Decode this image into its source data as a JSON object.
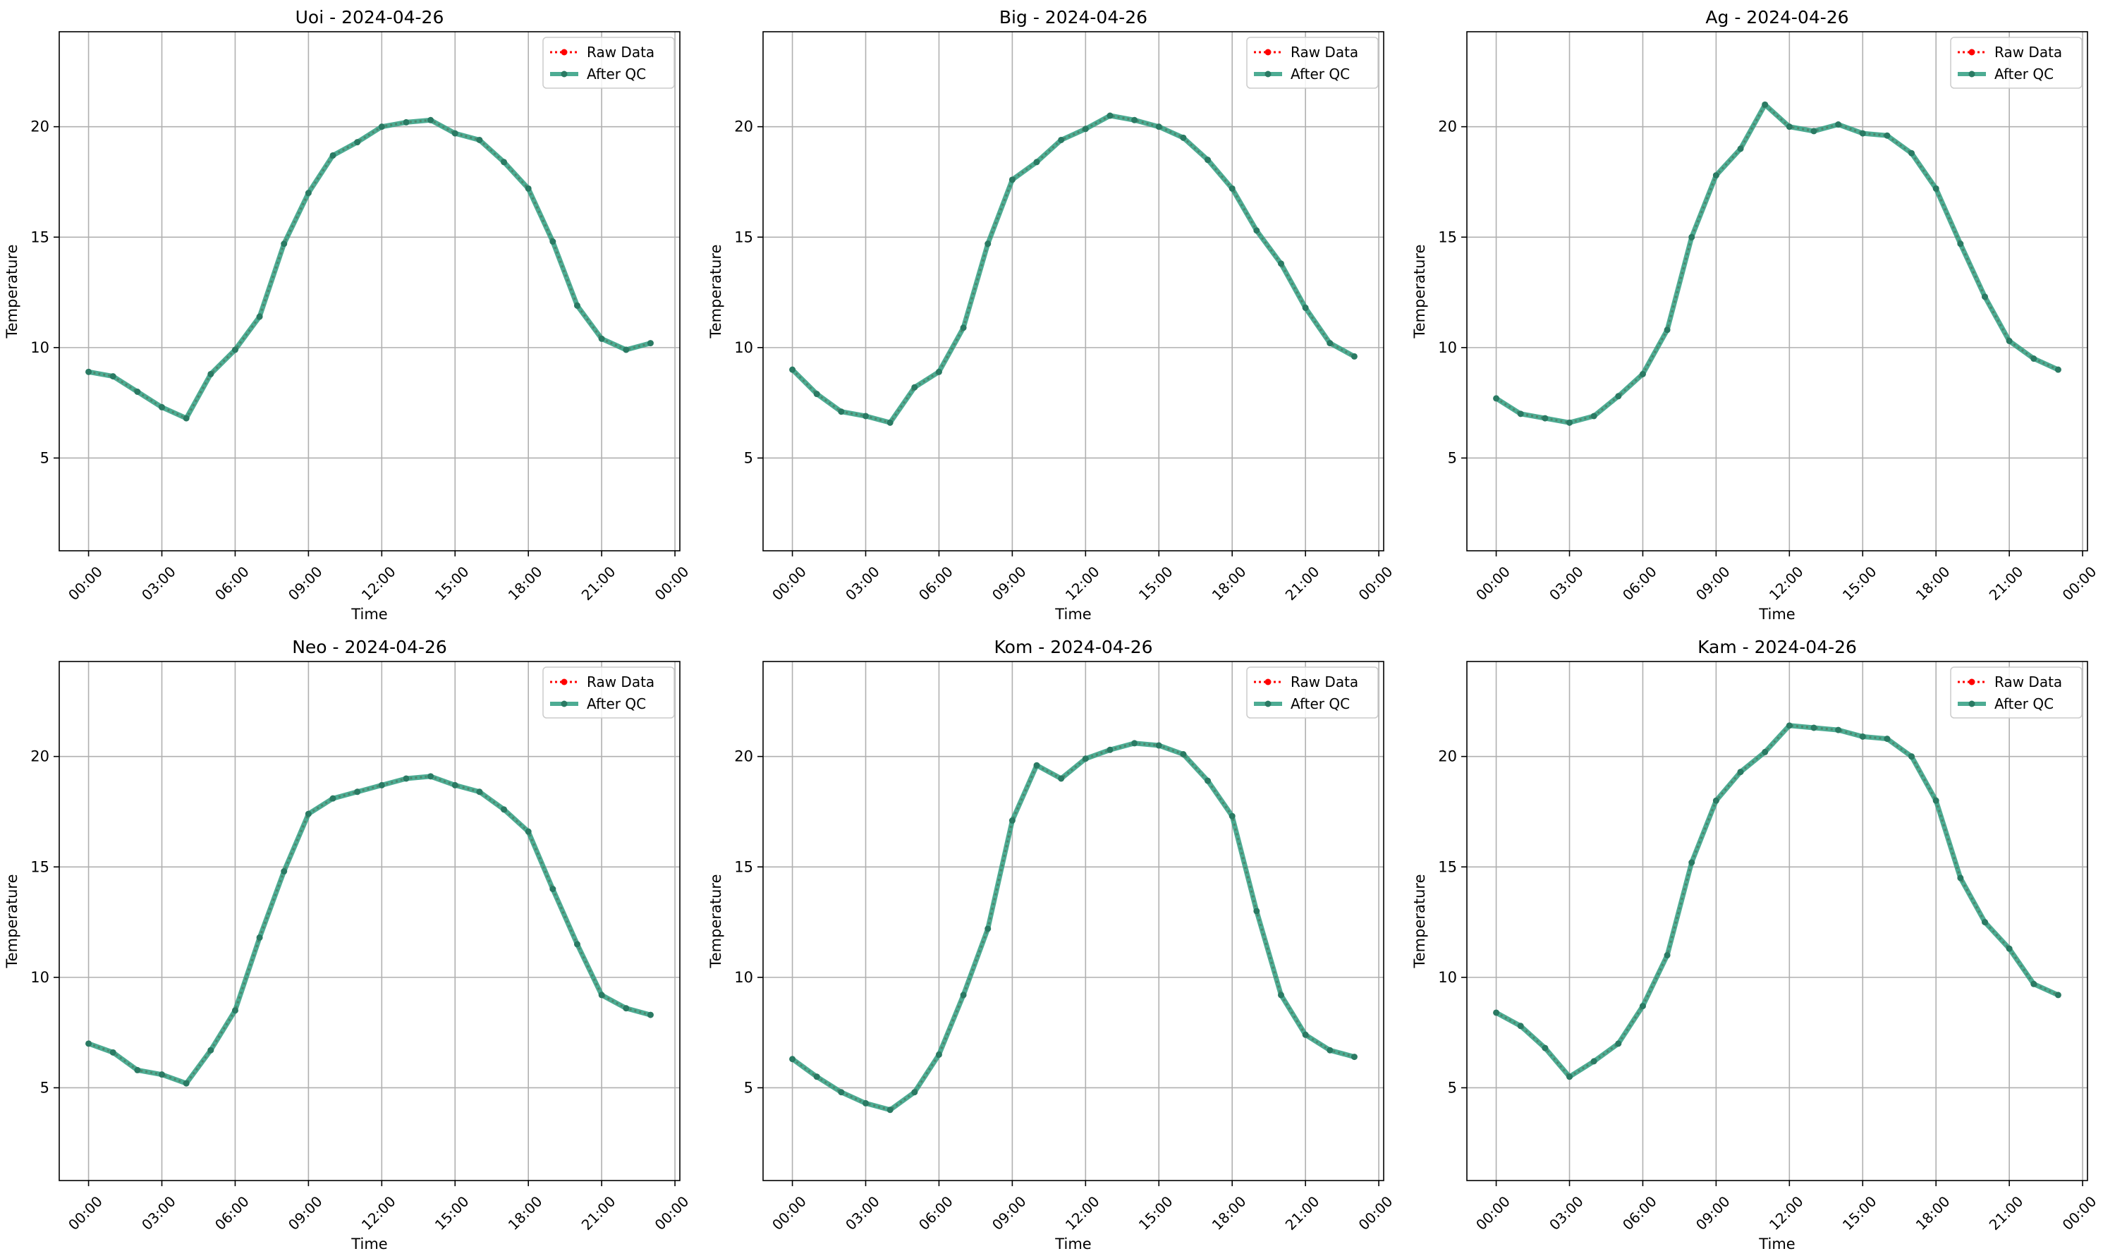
{
  "legend_entries": {
    "raw": "Raw Data",
    "qc": "After QC"
  },
  "colors": {
    "raw": "#ff0000",
    "qc": "#2e9e80",
    "grid": "#b0b0b0",
    "axes": "#000000"
  },
  "chart_data": [
    {
      "type": "line",
      "title": "Uoi - 2024-04-26",
      "xlabel": "Time",
      "ylabel": "Temperature",
      "x_unit": "hour",
      "x_ticks": [
        0,
        3,
        6,
        9,
        12,
        15,
        18,
        21,
        24
      ],
      "x_tick_labels": [
        "00:00",
        "03:00",
        "06:00",
        "09:00",
        "12:00",
        "15:00",
        "18:00",
        "21:00",
        "00:00"
      ],
      "y_ticks": [
        5,
        10,
        15,
        20
      ],
      "xlim": [
        -1.2,
        24.2
      ],
      "ylim": [
        0.8,
        24.3
      ],
      "grid": true,
      "legend": "upper right",
      "x": [
        0,
        1,
        2,
        3,
        4,
        5,
        6,
        7,
        8,
        9,
        10,
        11,
        12,
        13,
        14,
        15,
        16,
        17,
        18,
        19,
        20,
        21,
        22,
        23
      ],
      "series": [
        {
          "name": "Raw Data",
          "style": "dotted-marker",
          "values": [
            8.9,
            8.7,
            8.0,
            7.3,
            6.8,
            8.8,
            9.9,
            11.4,
            14.7,
            17.0,
            18.7,
            19.3,
            20.0,
            20.2,
            20.3,
            19.7,
            19.4,
            18.4,
            17.2,
            14.8,
            11.9,
            10.4,
            9.9,
            10.2
          ]
        },
        {
          "name": "After QC",
          "style": "solid-marker",
          "values": [
            8.9,
            8.7,
            8.0,
            7.3,
            6.8,
            8.8,
            9.9,
            11.4,
            14.7,
            17.0,
            18.7,
            19.3,
            20.0,
            20.2,
            20.3,
            19.7,
            19.4,
            18.4,
            17.2,
            14.8,
            11.9,
            10.4,
            9.9,
            10.2
          ]
        }
      ]
    },
    {
      "type": "line",
      "title": "Big - 2024-04-26",
      "xlabel": "Time",
      "ylabel": "Temperature",
      "x_unit": "hour",
      "x_ticks": [
        0,
        3,
        6,
        9,
        12,
        15,
        18,
        21,
        24
      ],
      "x_tick_labels": [
        "00:00",
        "03:00",
        "06:00",
        "09:00",
        "12:00",
        "15:00",
        "18:00",
        "21:00",
        "00:00"
      ],
      "y_ticks": [
        5,
        10,
        15,
        20
      ],
      "xlim": [
        -1.2,
        24.2
      ],
      "ylim": [
        0.8,
        24.3
      ],
      "grid": true,
      "legend": "upper right",
      "x": [
        0,
        1,
        2,
        3,
        4,
        5,
        6,
        7,
        8,
        9,
        10,
        11,
        12,
        13,
        14,
        15,
        16,
        17,
        18,
        19,
        20,
        21,
        22,
        23
      ],
      "series": [
        {
          "name": "Raw Data",
          "style": "dotted-marker",
          "values": [
            9.0,
            7.9,
            7.1,
            6.9,
            6.6,
            8.2,
            8.9,
            10.9,
            14.7,
            17.6,
            18.4,
            19.4,
            19.9,
            20.5,
            20.3,
            20.0,
            19.5,
            18.5,
            17.2,
            15.3,
            13.8,
            11.8,
            10.2,
            9.6
          ]
        },
        {
          "name": "After QC",
          "style": "solid-marker",
          "values": [
            9.0,
            7.9,
            7.1,
            6.9,
            6.6,
            8.2,
            8.9,
            10.9,
            14.7,
            17.6,
            18.4,
            19.4,
            19.9,
            20.5,
            20.3,
            20.0,
            19.5,
            18.5,
            17.2,
            15.3,
            13.8,
            11.8,
            10.2,
            9.6
          ]
        }
      ]
    },
    {
      "type": "line",
      "title": "Ag - 2024-04-26",
      "xlabel": "Time",
      "ylabel": "Temperature",
      "x_unit": "hour",
      "x_ticks": [
        0,
        3,
        6,
        9,
        12,
        15,
        18,
        21,
        24
      ],
      "x_tick_labels": [
        "00:00",
        "03:00",
        "06:00",
        "09:00",
        "12:00",
        "15:00",
        "18:00",
        "21:00",
        "00:00"
      ],
      "y_ticks": [
        5,
        10,
        15,
        20
      ],
      "xlim": [
        -1.2,
        24.2
      ],
      "ylim": [
        0.8,
        24.3
      ],
      "grid": true,
      "legend": "upper right",
      "x": [
        0,
        1,
        2,
        3,
        4,
        5,
        6,
        7,
        8,
        9,
        10,
        11,
        12,
        13,
        14,
        15,
        16,
        17,
        18,
        19,
        20,
        21,
        22,
        23
      ],
      "series": [
        {
          "name": "Raw Data",
          "style": "dotted-marker",
          "values": [
            7.7,
            7.0,
            6.8,
            6.6,
            6.9,
            7.8,
            8.8,
            10.8,
            15.0,
            17.8,
            19.0,
            21.0,
            20.0,
            19.8,
            20.1,
            19.7,
            19.6,
            18.8,
            17.2,
            14.7,
            12.3,
            10.3,
            9.5,
            9.0
          ]
        },
        {
          "name": "After QC",
          "style": "solid-marker",
          "values": [
            7.7,
            7.0,
            6.8,
            6.6,
            6.9,
            7.8,
            8.8,
            10.8,
            15.0,
            17.8,
            19.0,
            21.0,
            20.0,
            19.8,
            20.1,
            19.7,
            19.6,
            18.8,
            17.2,
            14.7,
            12.3,
            10.3,
            9.5,
            9.0
          ]
        }
      ]
    },
    {
      "type": "line",
      "title": "Neo - 2024-04-26",
      "xlabel": "Time",
      "ylabel": "Temperature",
      "x_unit": "hour",
      "x_ticks": [
        0,
        3,
        6,
        9,
        12,
        15,
        18,
        21,
        24
      ],
      "x_tick_labels": [
        "00:00",
        "03:00",
        "06:00",
        "09:00",
        "12:00",
        "15:00",
        "18:00",
        "21:00",
        "00:00"
      ],
      "y_ticks": [
        5,
        10,
        15,
        20
      ],
      "xlim": [
        -1.2,
        24.2
      ],
      "ylim": [
        0.8,
        24.3
      ],
      "grid": true,
      "legend": "upper right",
      "x": [
        0,
        1,
        2,
        3,
        4,
        5,
        6,
        7,
        8,
        9,
        10,
        11,
        12,
        13,
        14,
        15,
        16,
        17,
        18,
        19,
        20,
        21,
        22,
        23
      ],
      "series": [
        {
          "name": "Raw Data",
          "style": "dotted-marker",
          "values": [
            7.0,
            6.6,
            5.8,
            5.6,
            5.2,
            6.7,
            8.5,
            11.8,
            14.8,
            17.4,
            18.1,
            18.4,
            18.7,
            19.0,
            19.1,
            18.7,
            18.4,
            17.6,
            16.6,
            14.0,
            11.5,
            9.2,
            8.6,
            8.3
          ]
        },
        {
          "name": "After QC",
          "style": "solid-marker",
          "values": [
            7.0,
            6.6,
            5.8,
            5.6,
            5.2,
            6.7,
            8.5,
            11.8,
            14.8,
            17.4,
            18.1,
            18.4,
            18.7,
            19.0,
            19.1,
            18.7,
            18.4,
            17.6,
            16.6,
            14.0,
            11.5,
            9.2,
            8.6,
            8.3
          ]
        }
      ]
    },
    {
      "type": "line",
      "title": "Kom - 2024-04-26",
      "xlabel": "Time",
      "ylabel": "Temperature",
      "x_unit": "hour",
      "x_ticks": [
        0,
        3,
        6,
        9,
        12,
        15,
        18,
        21,
        24
      ],
      "x_tick_labels": [
        "00:00",
        "03:00",
        "06:00",
        "09:00",
        "12:00",
        "15:00",
        "18:00",
        "21:00",
        "00:00"
      ],
      "y_ticks": [
        5,
        10,
        15,
        20
      ],
      "xlim": [
        -1.2,
        24.2
      ],
      "ylim": [
        0.8,
        24.3
      ],
      "grid": true,
      "legend": "upper right",
      "x": [
        0,
        1,
        2,
        3,
        4,
        5,
        6,
        7,
        8,
        9,
        10,
        11,
        12,
        13,
        14,
        15,
        16,
        17,
        18,
        19,
        20,
        21,
        22,
        23
      ],
      "series": [
        {
          "name": "Raw Data",
          "style": "dotted-marker",
          "values": [
            6.3,
            5.5,
            4.8,
            4.3,
            4.0,
            4.8,
            6.5,
            9.2,
            12.2,
            17.1,
            19.6,
            19.0,
            19.9,
            20.3,
            20.6,
            20.5,
            20.1,
            18.9,
            17.3,
            13.0,
            9.2,
            7.4,
            6.7,
            6.4
          ]
        },
        {
          "name": "After QC",
          "style": "solid-marker",
          "values": [
            6.3,
            5.5,
            4.8,
            4.3,
            4.0,
            4.8,
            6.5,
            9.2,
            12.2,
            17.1,
            19.6,
            19.0,
            19.9,
            20.3,
            20.6,
            20.5,
            20.1,
            18.9,
            17.3,
            13.0,
            9.2,
            7.4,
            6.7,
            6.4
          ]
        }
      ]
    },
    {
      "type": "line",
      "title": "Kam - 2024-04-26",
      "xlabel": "Time",
      "ylabel": "Temperature",
      "x_unit": "hour",
      "x_ticks": [
        0,
        3,
        6,
        9,
        12,
        15,
        18,
        21,
        24
      ],
      "x_tick_labels": [
        "00:00",
        "03:00",
        "06:00",
        "09:00",
        "12:00",
        "15:00",
        "18:00",
        "21:00",
        "00:00"
      ],
      "y_ticks": [
        5,
        10,
        15,
        20
      ],
      "xlim": [
        -1.2,
        24.2
      ],
      "ylim": [
        0.8,
        24.3
      ],
      "grid": true,
      "legend": "upper right",
      "x": [
        0,
        1,
        2,
        3,
        4,
        5,
        6,
        7,
        8,
        9,
        10,
        11,
        12,
        13,
        14,
        15,
        16,
        17,
        18,
        19,
        20,
        21,
        22,
        23
      ],
      "series": [
        {
          "name": "Raw Data",
          "style": "dotted-marker",
          "values": [
            8.4,
            7.8,
            6.8,
            5.5,
            6.2,
            7.0,
            8.7,
            11.0,
            15.2,
            18.0,
            19.3,
            20.2,
            21.4,
            21.3,
            21.2,
            20.9,
            20.8,
            20.0,
            18.0,
            14.5,
            12.5,
            11.3,
            9.7,
            9.2
          ]
        },
        {
          "name": "After QC",
          "style": "solid-marker",
          "values": [
            8.4,
            7.8,
            6.8,
            5.5,
            6.2,
            7.0,
            8.7,
            11.0,
            15.2,
            18.0,
            19.3,
            20.2,
            21.4,
            21.3,
            21.2,
            20.9,
            20.8,
            20.0,
            18.0,
            14.5,
            12.5,
            11.3,
            9.7,
            9.2
          ]
        }
      ]
    }
  ]
}
